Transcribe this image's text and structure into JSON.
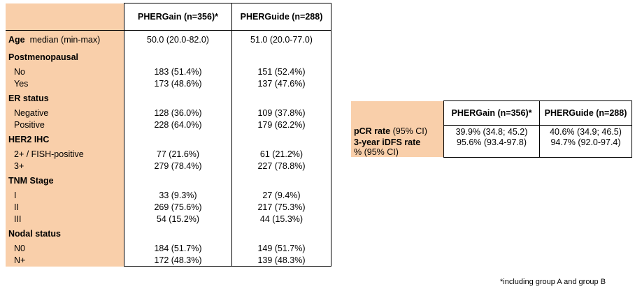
{
  "left_table": {
    "header": {
      "label": "",
      "col_a": "PHERGain (n=356)*",
      "col_b": "PHERGuide (n=288)"
    },
    "age": {
      "label_bold": "Age",
      "label_rest": "median (min-max)",
      "a": "50.0 (20.0-82.0)",
      "b": "51.0 (20.0-77.0)"
    },
    "sections": [
      {
        "title": "Postmenopausal",
        "rows": [
          {
            "label": "No",
            "a": "183 (51.4%)",
            "b": "151 (52.4%)"
          },
          {
            "label": "Yes",
            "a": "173 (48.6%)",
            "b": "137 (47.6%)"
          }
        ]
      },
      {
        "title": "ER status",
        "rows": [
          {
            "label": "Negative",
            "a": "128 (36.0%)",
            "b": "109 (37.8%)"
          },
          {
            "label": "Positive",
            "a": "228 (64.0%)",
            "b": "179 (62.2%)"
          }
        ]
      },
      {
        "title": "HER2 IHC",
        "rows": [
          {
            "label": "2+ / FISH-positive",
            "a": "77 (21.6%)",
            "b": "61 (21.2%)"
          },
          {
            "label": "3+",
            "a": "279 (78.4%)",
            "b": "227 (78.8%)"
          }
        ]
      },
      {
        "title": "TNM Stage",
        "rows": [
          {
            "label": "I",
            "a": "33 (9.3%)",
            "b": "27 (9.4%)"
          },
          {
            "label": "II",
            "a": "269 (75.6%)",
            "b": "217 (75.3%)"
          },
          {
            "label": "III",
            "a": "54 (15.2%)",
            "b": "44 (15.3%)"
          }
        ]
      },
      {
        "title": "Nodal status",
        "rows": [
          {
            "label": "N0",
            "a": "184 (51.7%)",
            "b": "149 (51.7%)"
          },
          {
            "label": "N+",
            "a": "172 (48.3%)",
            "b": "139 (48.3%)"
          }
        ]
      }
    ]
  },
  "right_table": {
    "header": {
      "label": "",
      "col_a": "PHERGain (n=356)*",
      "col_b": "PHERGuide (n=288)"
    },
    "rows": [
      {
        "label_bold": "pCR rate",
        "label_rest": "(95% CI)",
        "label_line2": "",
        "a": "39.9% (34.8; 45.2)",
        "b": "40.6% (34.9; 46.5)"
      },
      {
        "label_bold": "3-year iDFS rate",
        "label_rest": "",
        "label_line2": "% (95% CI)",
        "a": "95.6% (93.4-97.8)",
        "b": "94.7% (92.0-97.4)"
      }
    ]
  },
  "footnote": "*including group A and group B"
}
